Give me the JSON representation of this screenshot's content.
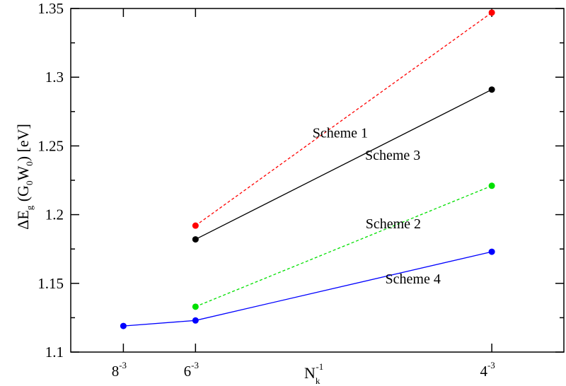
{
  "chart_data": {
    "type": "line",
    "xlabel": {
      "base": "N",
      "sub": "k",
      "sup": "-1"
    },
    "ylabel": {
      "prefix": "ΔE",
      "sub_g": "g",
      "mid1": " (G",
      "sub_0a": "0",
      "mid2": "W",
      "sub_0b": "0",
      "suffix": ") [eV]"
    },
    "xlim": [
      0.0,
      0.0183
    ],
    "ylim": [
      1.1,
      1.35
    ],
    "x_ticks": [
      {
        "value": 0.001953125,
        "base": "8",
        "sup": "-3"
      },
      {
        "value": 0.00462963,
        "base": "6",
        "sup": "-3"
      },
      {
        "value": 0.015625,
        "base": "4",
        "sup": "-3"
      }
    ],
    "y_ticks": [
      {
        "value": 1.1,
        "label": "1.1"
      },
      {
        "value": 1.15,
        "label": "1.15"
      },
      {
        "value": 1.2,
        "label": "1.2"
      },
      {
        "value": 1.25,
        "label": "1.25"
      },
      {
        "value": 1.3,
        "label": "1.3"
      },
      {
        "value": 1.35,
        "label": "1.35"
      }
    ],
    "series": [
      {
        "name": "Scheme 1",
        "color": "#ff0000",
        "dashed": true,
        "x": [
          0.00462963,
          0.015625
        ],
        "y": [
          1.192,
          1.347
        ]
      },
      {
        "name": "Scheme 3",
        "color": "#000000",
        "dashed": false,
        "x": [
          0.00462963,
          0.015625
        ],
        "y": [
          1.182,
          1.291
        ]
      },
      {
        "name": "Scheme 2",
        "color": "#00e000",
        "dashed": true,
        "x": [
          0.00462963,
          0.015625
        ],
        "y": [
          1.133,
          1.221
        ]
      },
      {
        "name": "Scheme 4",
        "color": "#0000ff",
        "dashed": false,
        "x": [
          0.001953125,
          0.00462963,
          0.015625
        ],
        "y": [
          1.119,
          1.123,
          1.173
        ]
      }
    ],
    "annotations": [
      {
        "text": "Scheme 1",
        "x": 0.01,
        "y": 1.256
      },
      {
        "text": "Scheme 3",
        "x": 0.01195,
        "y": 1.24
      },
      {
        "text": "Scheme 2",
        "x": 0.01197,
        "y": 1.19
      },
      {
        "text": "Scheme 4",
        "x": 0.0127,
        "y": 1.15
      }
    ],
    "grid": false
  }
}
